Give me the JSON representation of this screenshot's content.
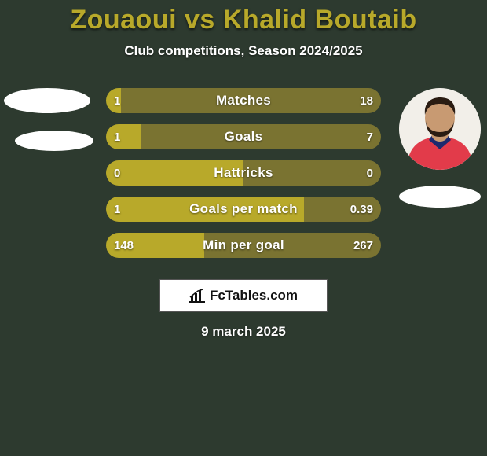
{
  "background_color": "#2d3a2f",
  "title": {
    "player1": "Zouaoui",
    "vs": "vs",
    "player2": "Khalid Boutaib",
    "color": "#b8a92a",
    "fontsize": 34
  },
  "subtitle": {
    "text": "Club competitions, Season 2024/2025",
    "color": "#ffffff",
    "fontsize": 17
  },
  "bar_style": {
    "fill_color": "#b8a92a",
    "remainder_color": "#7a7331",
    "height": 32,
    "gap": 14,
    "radius": 16,
    "label_fontsize": 17,
    "value_fontsize": 15,
    "text_color": "#ffffff"
  },
  "bars": [
    {
      "label": "Matches",
      "left": "1",
      "right": "18",
      "left_pct": 5.3
    },
    {
      "label": "Goals",
      "left": "1",
      "right": "7",
      "left_pct": 12.5
    },
    {
      "label": "Hattricks",
      "left": "0",
      "right": "0",
      "left_pct": 50.0
    },
    {
      "label": "Goals per match",
      "left": "1",
      "right": "0.39",
      "left_pct": 71.9
    },
    {
      "label": "Min per goal",
      "left": "148",
      "right": "267",
      "left_pct": 35.7
    }
  ],
  "logo": {
    "text": "FcTables.com",
    "bg": "#ffffff",
    "border": "#555555",
    "icon_name": "bar-chart-icon"
  },
  "date": "9 march 2025",
  "placeholders": {
    "oval_color": "#ffffff",
    "left_has_photo": false,
    "right_has_photo": true
  },
  "right_player_photo": {
    "skin": "#c89a72",
    "hair": "#2a1c12",
    "shirt": "#e23b4a",
    "collar": "#1c2a6e",
    "bg": "#f2efe9"
  }
}
